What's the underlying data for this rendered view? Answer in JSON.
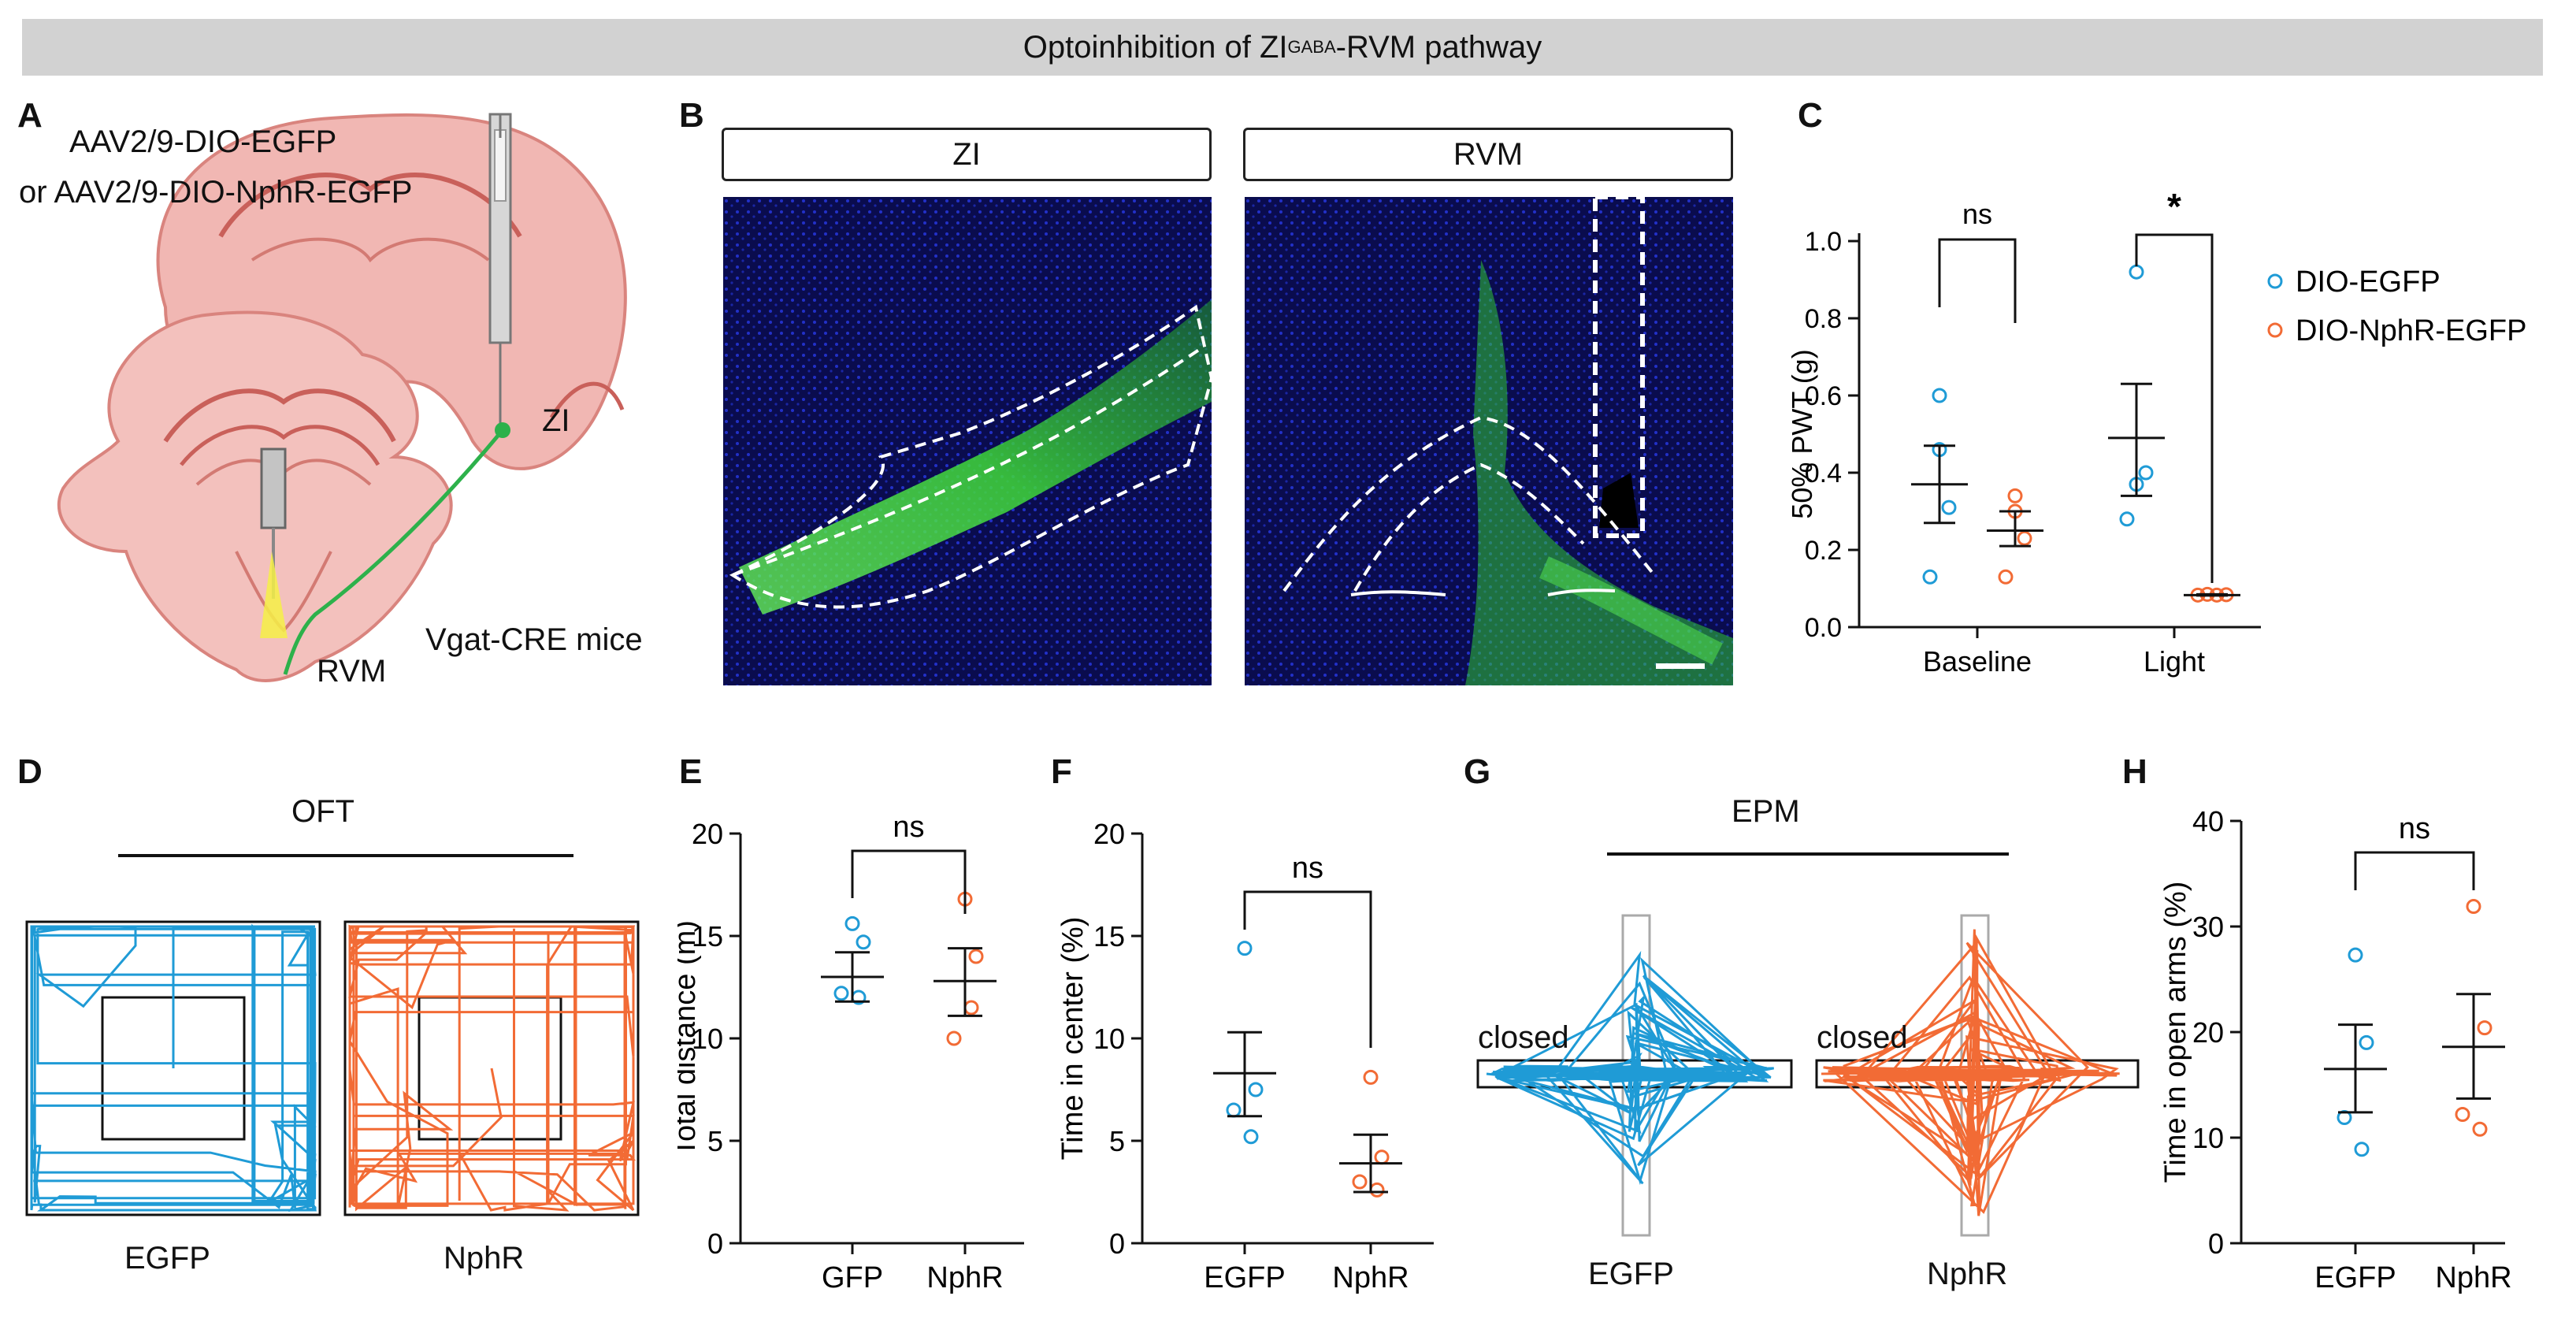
{
  "banner": {
    "title_main": "Optoinhibition of ZI",
    "title_sup": "GABA",
    "title_tail": "-RVM pathway"
  },
  "panels": {
    "A": "A",
    "B": "B",
    "C": "C",
    "D": "D",
    "E": "E",
    "F": "F",
    "G": "G",
    "H": "H"
  },
  "colors": {
    "egfp": "#1f9bd6",
    "nphr": "#f26b35",
    "banner": "#d2d2d2"
  },
  "panelA": {
    "virus1": "AAV2/9-DIO-EGFP",
    "virus2": "or AAV2/9-DIO-NphR-EGFP",
    "zi": "ZI",
    "rvm": "RVM",
    "mice": "Vgat-CRE mice"
  },
  "panelB": {
    "left_title": "ZI",
    "right_title": "RVM"
  },
  "chart_data": [
    {
      "id": "C",
      "type": "scatter",
      "ylabel": "50% PWT (g)",
      "ylim": [
        0,
        1.0
      ],
      "yticks": [
        "0.0",
        "0.2",
        "0.4",
        "0.6",
        "0.8",
        "1.0"
      ],
      "categories": [
        "Baseline",
        "Light"
      ],
      "legend": [
        "DIO-EGFP",
        "DIO-NphR-EGFP"
      ],
      "series": [
        {
          "name": "DIO-EGFP",
          "groups": [
            {
              "cat": "Baseline",
              "points": [
                0.6,
                0.46,
                0.31,
                0.13
              ],
              "mean": 0.37,
              "sem_low": 0.27,
              "sem_high": 0.47
            },
            {
              "cat": "Light",
              "points": [
                0.92,
                0.37,
                0.4,
                0.28
              ],
              "mean": 0.49,
              "sem_low": 0.34,
              "sem_high": 0.63
            }
          ]
        },
        {
          "name": "DIO-NphR-EGFP",
          "groups": [
            {
              "cat": "Baseline",
              "points": [
                0.34,
                0.3,
                0.23,
                0.13
              ],
              "mean": 0.25,
              "sem_low": 0.21,
              "sem_high": 0.3
            },
            {
              "cat": "Light",
              "points": [
                0.083,
                0.085,
                0.083,
                0.084
              ],
              "mean": 0.083,
              "sem_low": 0.082,
              "sem_high": 0.085
            }
          ]
        }
      ],
      "sig": [
        "ns",
        "*"
      ]
    },
    {
      "id": "E",
      "type": "scatter",
      "ylabel": "Total distance (m)",
      "ylim": [
        0,
        20
      ],
      "yticks": [
        "0",
        "5",
        "10",
        "15",
        "20"
      ],
      "categories": [
        "GFP",
        "NphR"
      ],
      "groups": [
        {
          "cat": "GFP",
          "color": "egfp",
          "points": [
            15.6,
            14.7,
            12.2,
            12.0
          ],
          "mean": 13.0,
          "sem_low": 11.8,
          "sem_high": 14.2
        },
        {
          "cat": "NphR",
          "color": "nphr",
          "points": [
            16.8,
            14.0,
            10.0,
            11.5
          ],
          "mean": 12.8,
          "sem_low": 11.1,
          "sem_high": 14.4
        }
      ],
      "sig": "ns"
    },
    {
      "id": "F",
      "type": "scatter",
      "ylabel": "Time in center (%)",
      "ylim": [
        0,
        20
      ],
      "yticks": [
        "0",
        "5",
        "10",
        "15",
        "20"
      ],
      "categories": [
        "EGFP",
        "NphR"
      ],
      "groups": [
        {
          "cat": "EGFP",
          "color": "egfp",
          "points": [
            14.4,
            7.5,
            6.5,
            5.2
          ],
          "mean": 8.3,
          "sem_low": 6.2,
          "sem_high": 10.3
        },
        {
          "cat": "NphR",
          "color": "nphr",
          "points": [
            8.1,
            4.2,
            3.0,
            2.6
          ],
          "mean": 3.9,
          "sem_low": 2.5,
          "sem_high": 5.3
        }
      ],
      "sig": "ns"
    },
    {
      "id": "H",
      "type": "scatter",
      "ylabel": "Time in open arms (%)",
      "ylim": [
        0,
        40
      ],
      "yticks": [
        "0",
        "10",
        "20",
        "30",
        "40"
      ],
      "categories": [
        "EGFP",
        "NphR"
      ],
      "groups": [
        {
          "cat": "EGFP",
          "color": "egfp",
          "points": [
            27.3,
            19.0,
            11.9,
            8.9
          ],
          "mean": 16.5,
          "sem_low": 12.4,
          "sem_high": 20.7
        },
        {
          "cat": "NphR",
          "color": "nphr",
          "points": [
            31.9,
            20.4,
            12.2,
            10.8
          ],
          "mean": 18.6,
          "sem_low": 13.7,
          "sem_high": 23.6
        }
      ],
      "sig": "ns"
    }
  ],
  "panelD": {
    "title": "OFT",
    "left_label": "EGFP",
    "right_label": "NphR"
  },
  "panelG": {
    "title": "EPM",
    "closed_left": "closed",
    "closed_right": "closed",
    "left_label": "EGFP",
    "right_label": "NphR"
  }
}
